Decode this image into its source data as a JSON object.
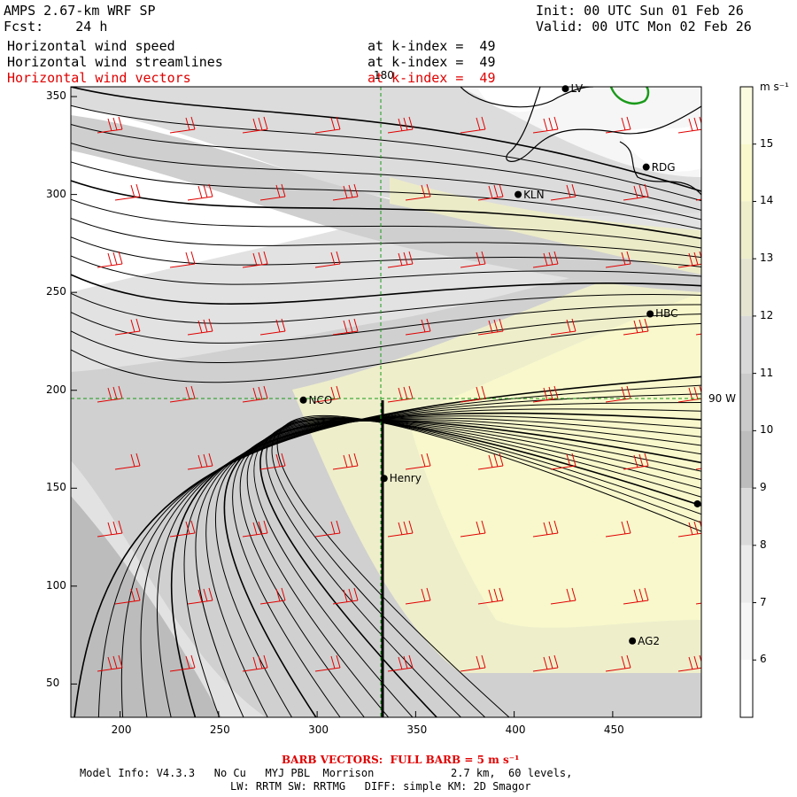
{
  "header": {
    "model": "AMPS 2.67-km WRF SP",
    "forecast": "Fcst:    24 h",
    "init": "Init: 00 UTC Sun 01 Feb 26",
    "valid": "Valid: 00 UTC Mon 02 Feb 26"
  },
  "fields": [
    {
      "name": "Horizontal wind speed",
      "level": "at k-index =  49",
      "color": "#000000"
    },
    {
      "name": "Horizontal wind streamlines",
      "level": "at k-index =  49",
      "color": "#000000"
    },
    {
      "name": "Horizontal wind vectors",
      "level": "at k-index =  49",
      "color": "#e00000"
    }
  ],
  "map": {
    "x_axis": {
      "ticks": [
        "200",
        "250",
        "300",
        "350",
        "400",
        "450"
      ],
      "values": [
        200,
        250,
        300,
        350,
        400,
        450
      ],
      "range": [
        175,
        495
      ]
    },
    "y_axis": {
      "ticks": [
        "50",
        "100",
        "150",
        "200",
        "250",
        "300",
        "350"
      ],
      "values": [
        50,
        100,
        150,
        200,
        250,
        300,
        350
      ],
      "range": [
        33,
        355
      ]
    },
    "meridian_label": "180",
    "parallel_label": "90 W",
    "stations": [
      {
        "name": "NCO",
        "x": 293,
        "y": 195
      },
      {
        "name": "Henry",
        "x": 334,
        "y": 155
      },
      {
        "name": "KLN",
        "x": 402,
        "y": 300
      },
      {
        "name": "RDG",
        "x": 467,
        "y": 314
      },
      {
        "name": "HBC",
        "x": 469,
        "y": 239
      },
      {
        "name": "AG2",
        "x": 460,
        "y": 72
      },
      {
        "name": "LV",
        "x": 426,
        "y": 354
      },
      {
        "name": "",
        "x": 493,
        "y": 142
      }
    ]
  },
  "colorbar": {
    "units": "m s⁻¹",
    "labels": [
      "15",
      "14",
      "13",
      "12",
      "11",
      "10",
      "9",
      "8",
      "7",
      "6"
    ],
    "colors": [
      "#fbfbe0",
      "#f8f8cc",
      "#eeeecb",
      "#e4e4d0",
      "#d8d8d8",
      "#cbcbcb",
      "#bdbdbd",
      "#dadada",
      "#ebebeb",
      "#f6f6f6",
      "#ffffff"
    ]
  },
  "footer": {
    "barb_note": "BARB VECTORS:  FULL BARB = 5 m s⁻¹",
    "line1": "Model Info: V4.3.3   No Cu   MYJ PBL  Morrison            2.7 km,  60 levels,",
    "line2": "LW: RRTM SW: RRTMG   DIFF: simple KM: 2D Smagor"
  }
}
